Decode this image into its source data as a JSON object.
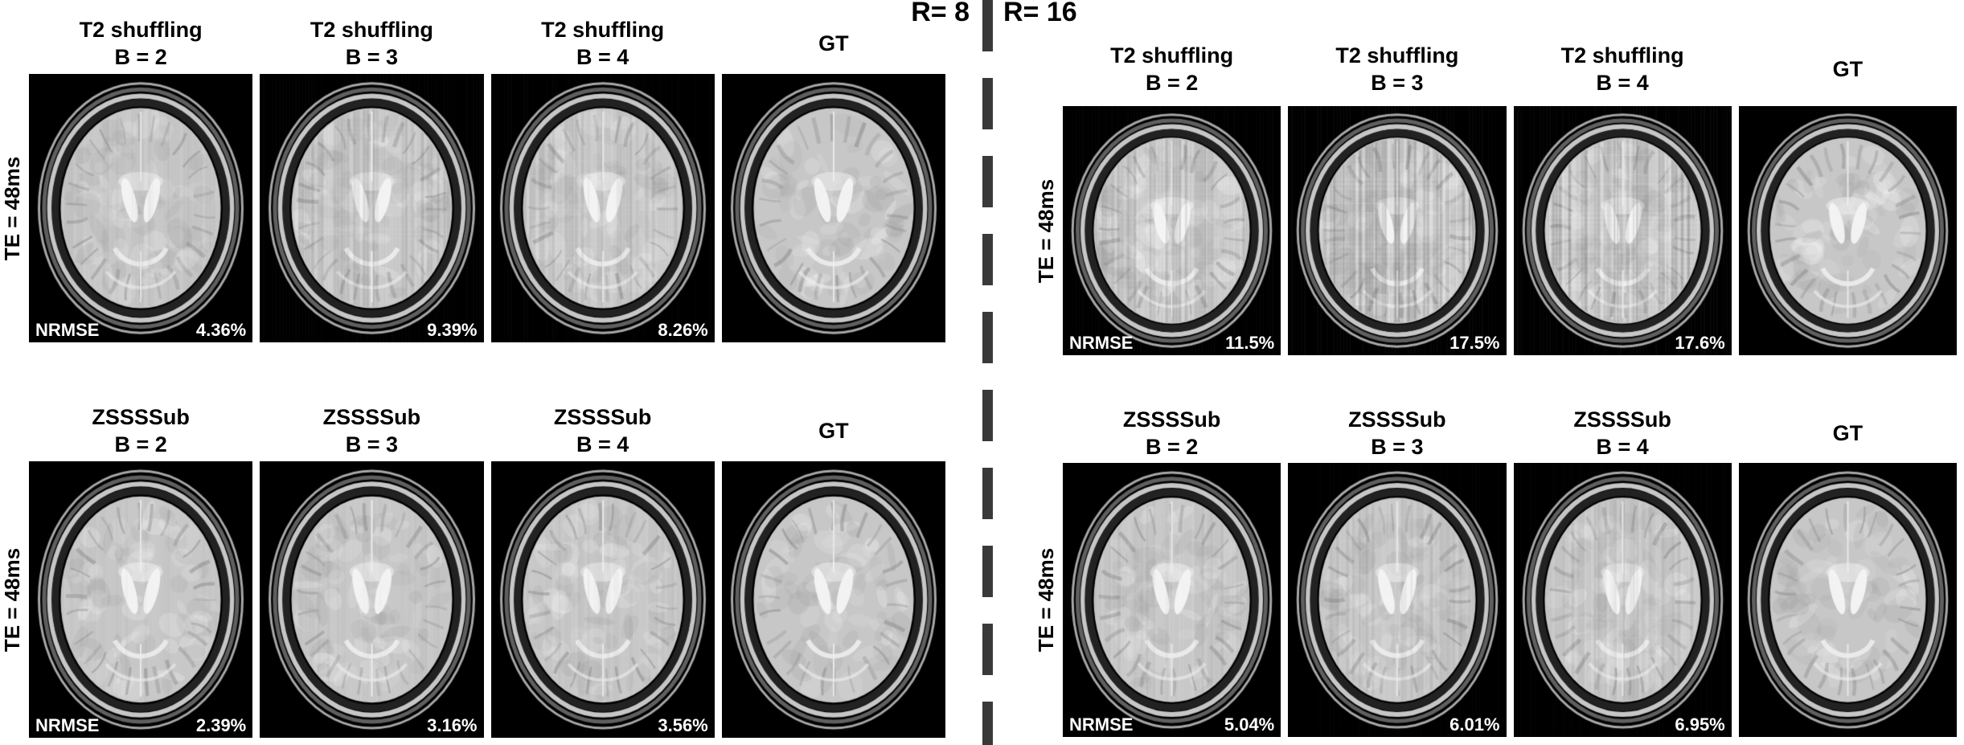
{
  "figure": {
    "colors": {
      "page_bg": "#ffffff",
      "panel_bg": "#000000",
      "title_text": "#000000",
      "overlay_text": "#ffffff",
      "divider": "#3a3a3a"
    },
    "sections": [
      {
        "id": "r8",
        "r_label": "R= 8",
        "rows": [
          {
            "te_label": "TE = 48ms",
            "nrmse_label": "NRMSE",
            "panels": [
              {
                "title1": "T2 shuffling",
                "title2": "B = 2",
                "nrmse": "4.36%"
              },
              {
                "title1": "T2 shuffling",
                "title2": "B = 3",
                "nrmse": "9.39%"
              },
              {
                "title1": "T2 shuffling",
                "title2": "B = 4",
                "nrmse": "8.26%"
              },
              {
                "title1": "GT",
                "title2": "",
                "nrmse": ""
              }
            ]
          },
          {
            "te_label": "TE = 48ms",
            "nrmse_label": "NRMSE",
            "panels": [
              {
                "title1": "ZSSSSub",
                "title2": "B = 2",
                "nrmse": "2.39%"
              },
              {
                "title1": "ZSSSSub",
                "title2": "B = 3",
                "nrmse": "3.16%"
              },
              {
                "title1": "ZSSSSub",
                "title2": "B = 4",
                "nrmse": "3.56%"
              },
              {
                "title1": "GT",
                "title2": "",
                "nrmse": ""
              }
            ]
          }
        ]
      },
      {
        "id": "r16",
        "r_label": "R= 16",
        "rows": [
          {
            "te_label": "TE = 48ms",
            "nrmse_label": "NRMSE",
            "panels": [
              {
                "title1": "T2 shuffling",
                "title2": "B = 2",
                "nrmse": "11.5%"
              },
              {
                "title1": "T2 shuffling",
                "title2": "B = 3",
                "nrmse": "17.5%"
              },
              {
                "title1": "T2 shuffling",
                "title2": "B = 4",
                "nrmse": "17.6%"
              },
              {
                "title1": "GT",
                "title2": "",
                "nrmse": ""
              }
            ]
          },
          {
            "te_label": "TE = 48ms",
            "nrmse_label": "NRMSE",
            "panels": [
              {
                "title1": "ZSSSSub",
                "title2": "B = 2",
                "nrmse": "5.04%"
              },
              {
                "title1": "ZSSSSub",
                "title2": "B = 3",
                "nrmse": "6.01%"
              },
              {
                "title1": "ZSSSSub",
                "title2": "B = 4",
                "nrmse": "6.95%"
              },
              {
                "title1": "GT",
                "title2": "",
                "nrmse": ""
              }
            ]
          }
        ]
      }
    ]
  }
}
